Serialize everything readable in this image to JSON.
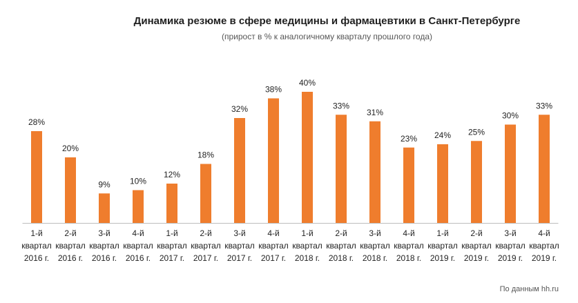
{
  "chart_data": {
    "type": "bar",
    "title": "Динамика резюме в сфере медицины и фармацевтики в Санкт-Петербурге",
    "subtitle": "(прирост в %  к аналогичному кварталу прошлого года)",
    "source": "По данным hh.ru",
    "categories": [
      [
        "1-й",
        "квартал",
        "2016 г."
      ],
      [
        "2-й",
        "квартал",
        "2016 г."
      ],
      [
        "3-й",
        "квартал",
        "2016 г."
      ],
      [
        "4-й",
        "квартал",
        "2016 г."
      ],
      [
        "1-й",
        "квартал",
        "2017 г."
      ],
      [
        "2-й",
        "квартал",
        "2017 г."
      ],
      [
        "3-й",
        "квартал",
        "2017 г."
      ],
      [
        "4-й",
        "квартал",
        "2017 г."
      ],
      [
        "1-й",
        "квартал",
        "2018 г."
      ],
      [
        "2-й",
        "квартал",
        "2018 г."
      ],
      [
        "3-й",
        "квартал",
        "2018 г."
      ],
      [
        "4-й",
        "квартал",
        "2018 г."
      ],
      [
        "1-й",
        "квартал",
        "2019 г."
      ],
      [
        "2-й",
        "квартал",
        "2019 г."
      ],
      [
        "3-й",
        "квартал",
        "2019 г."
      ],
      [
        "4-й",
        "квартал",
        "2019 г."
      ]
    ],
    "values": [
      28,
      20,
      9,
      10,
      12,
      18,
      32,
      38,
      40,
      33,
      31,
      23,
      24,
      25,
      30,
      33
    ],
    "value_suffix": "%",
    "ylim": [
      0,
      40
    ],
    "grid": false,
    "colors": {
      "bar": "#ef7d2d",
      "axis": "#bdbdbd"
    }
  }
}
